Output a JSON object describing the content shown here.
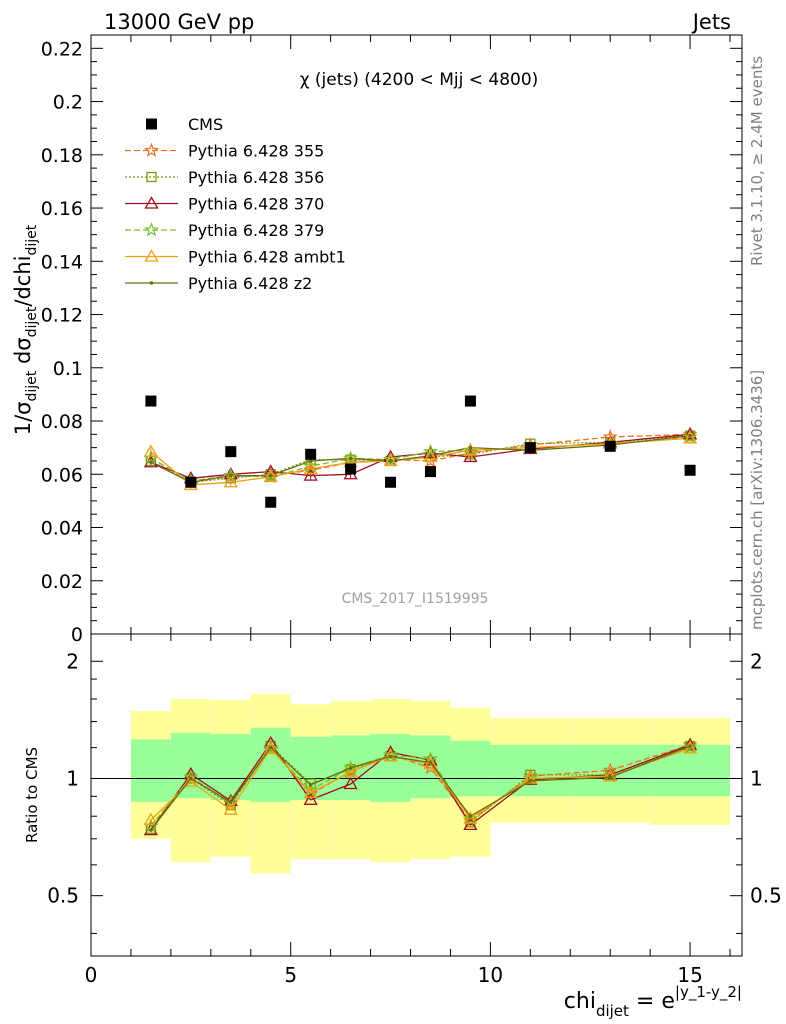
{
  "header": {
    "left": "13000 GeV pp",
    "right": "Jets"
  },
  "side_labels": {
    "upper": "Rivet 3.1.10, ≥ 2.4M events",
    "lower": "mcplots.cern.ch [arXiv:1306.3436]"
  },
  "chart_data": [
    {
      "type": "scatter",
      "title": "χ (jets) (4200 < Mjj < 4800)",
      "watermark": "CMS_2017_I1519995",
      "ylabel": {
        "main": "1/σ",
        "sub1": "dijet",
        "mid": " dσ",
        "sub2": "dijet",
        "end": "/dchi",
        "sub3": "dijet"
      },
      "xlim": [
        0,
        16.3
      ],
      "ylim": [
        0,
        0.225
      ],
      "yticks": [
        0,
        0.02,
        0.04,
        0.06,
        0.08,
        0.1,
        0.12,
        0.14,
        0.16,
        0.18,
        0.2,
        0.22
      ],
      "ytick_labels": [
        "0",
        "0.02",
        "0.04",
        "0.06",
        "0.08",
        "0.1",
        "0.12",
        "0.14",
        "0.16",
        "0.18",
        "0.2",
        "0.22"
      ],
      "x": [
        1.5,
        2.5,
        3.5,
        4.5,
        5.5,
        6.5,
        7.5,
        8.5,
        9.5,
        11.0,
        13.0,
        15.0
      ],
      "data": {
        "name": "CMS",
        "color": "#000000",
        "values": [
          0.0875,
          0.057,
          0.0685,
          0.0495,
          0.0675,
          0.062,
          0.057,
          0.061,
          0.0875,
          0.07,
          0.0705,
          0.0615
        ]
      },
      "series": [
        {
          "name": "Pythia 6.428 355",
          "color": "#f07020",
          "dash": "6,3",
          "marker": "star",
          "values": [
            0.066,
            0.0575,
            0.059,
            0.0595,
            0.0615,
            0.0645,
            0.0655,
            0.065,
            0.068,
            0.071,
            0.074,
            0.075
          ]
        },
        {
          "name": "Pythia 6.428 356",
          "color": "#7a9a10",
          "dash": "2,2",
          "marker": "square",
          "values": [
            0.065,
            0.057,
            0.0585,
            0.06,
            0.0655,
            0.0655,
            0.065,
            0.0665,
            0.0675,
            0.0715,
            0.072,
            0.0745
          ]
        },
        {
          "name": "Pythia 6.428 370",
          "color": "#a01020",
          "dash": "",
          "marker": "triangle",
          "values": [
            0.0645,
            0.0585,
            0.06,
            0.061,
            0.0595,
            0.06,
            0.0665,
            0.068,
            0.0665,
            0.0695,
            0.072,
            0.075
          ]
        },
        {
          "name": "Pythia 6.428 379",
          "color": "#78c030",
          "dash": "6,3",
          "marker": "star",
          "values": [
            0.066,
            0.0575,
            0.0595,
            0.059,
            0.063,
            0.066,
            0.0655,
            0.0685,
            0.069,
            0.07,
            0.0715,
            0.074
          ]
        },
        {
          "name": "Pythia 6.428 ambt1",
          "color": "#f0a010",
          "dash": "",
          "marker": "triangle",
          "values": [
            0.0685,
            0.056,
            0.057,
            0.059,
            0.062,
            0.0645,
            0.065,
            0.0665,
            0.069,
            0.07,
            0.0715,
            0.0735
          ]
        },
        {
          "name": "Pythia 6.428 z2",
          "color": "#6a7010",
          "dash": "",
          "marker": "dot",
          "values": [
            0.0645,
            0.057,
            0.0595,
            0.0595,
            0.065,
            0.066,
            0.065,
            0.067,
            0.07,
            0.069,
            0.071,
            0.0745
          ]
        }
      ],
      "legend_position": "top-left"
    },
    {
      "type": "scatter",
      "ylabel": "Ratio to CMS",
      "xlabel": {
        "main": "chi",
        "sub": "dijet",
        "eq": " = e",
        "sup": "|y_1-y_2|"
      },
      "log_y": true,
      "ylim": [
        0.35,
        2.35
      ],
      "yticks": [
        0.5,
        1,
        2
      ],
      "ytick_labels": [
        "0.5",
        "1",
        "2"
      ],
      "xticks": [
        0,
        5,
        10,
        15
      ],
      "xtick_labels": [
        "0",
        "5",
        "10",
        "15"
      ],
      "reference_line": 1,
      "bins": [
        [
          1,
          2
        ],
        [
          2,
          3
        ],
        [
          3,
          4
        ],
        [
          4,
          5
        ],
        [
          5,
          6
        ],
        [
          6,
          7
        ],
        [
          7,
          8
        ],
        [
          8,
          9
        ],
        [
          9,
          10
        ],
        [
          10,
          12
        ],
        [
          12,
          14
        ],
        [
          14,
          16
        ]
      ],
      "band_inner": [
        [
          0.87,
          1.26
        ],
        [
          0.89,
          1.31
        ],
        [
          0.88,
          1.3
        ],
        [
          0.87,
          1.35
        ],
        [
          0.88,
          1.28
        ],
        [
          0.88,
          1.29
        ],
        [
          0.87,
          1.3
        ],
        [
          0.89,
          1.29
        ],
        [
          0.9,
          1.25
        ],
        [
          0.9,
          1.22
        ],
        [
          0.9,
          1.22
        ],
        [
          0.9,
          1.22
        ]
      ],
      "band_outer": [
        [
          0.7,
          1.49
        ],
        [
          0.61,
          1.6
        ],
        [
          0.63,
          1.59
        ],
        [
          0.57,
          1.65
        ],
        [
          0.62,
          1.55
        ],
        [
          0.62,
          1.58
        ],
        [
          0.61,
          1.6
        ],
        [
          0.62,
          1.58
        ],
        [
          0.63,
          1.52
        ],
        [
          0.77,
          1.43
        ],
        [
          0.77,
          1.43
        ],
        [
          0.76,
          1.43
        ]
      ]
    }
  ]
}
